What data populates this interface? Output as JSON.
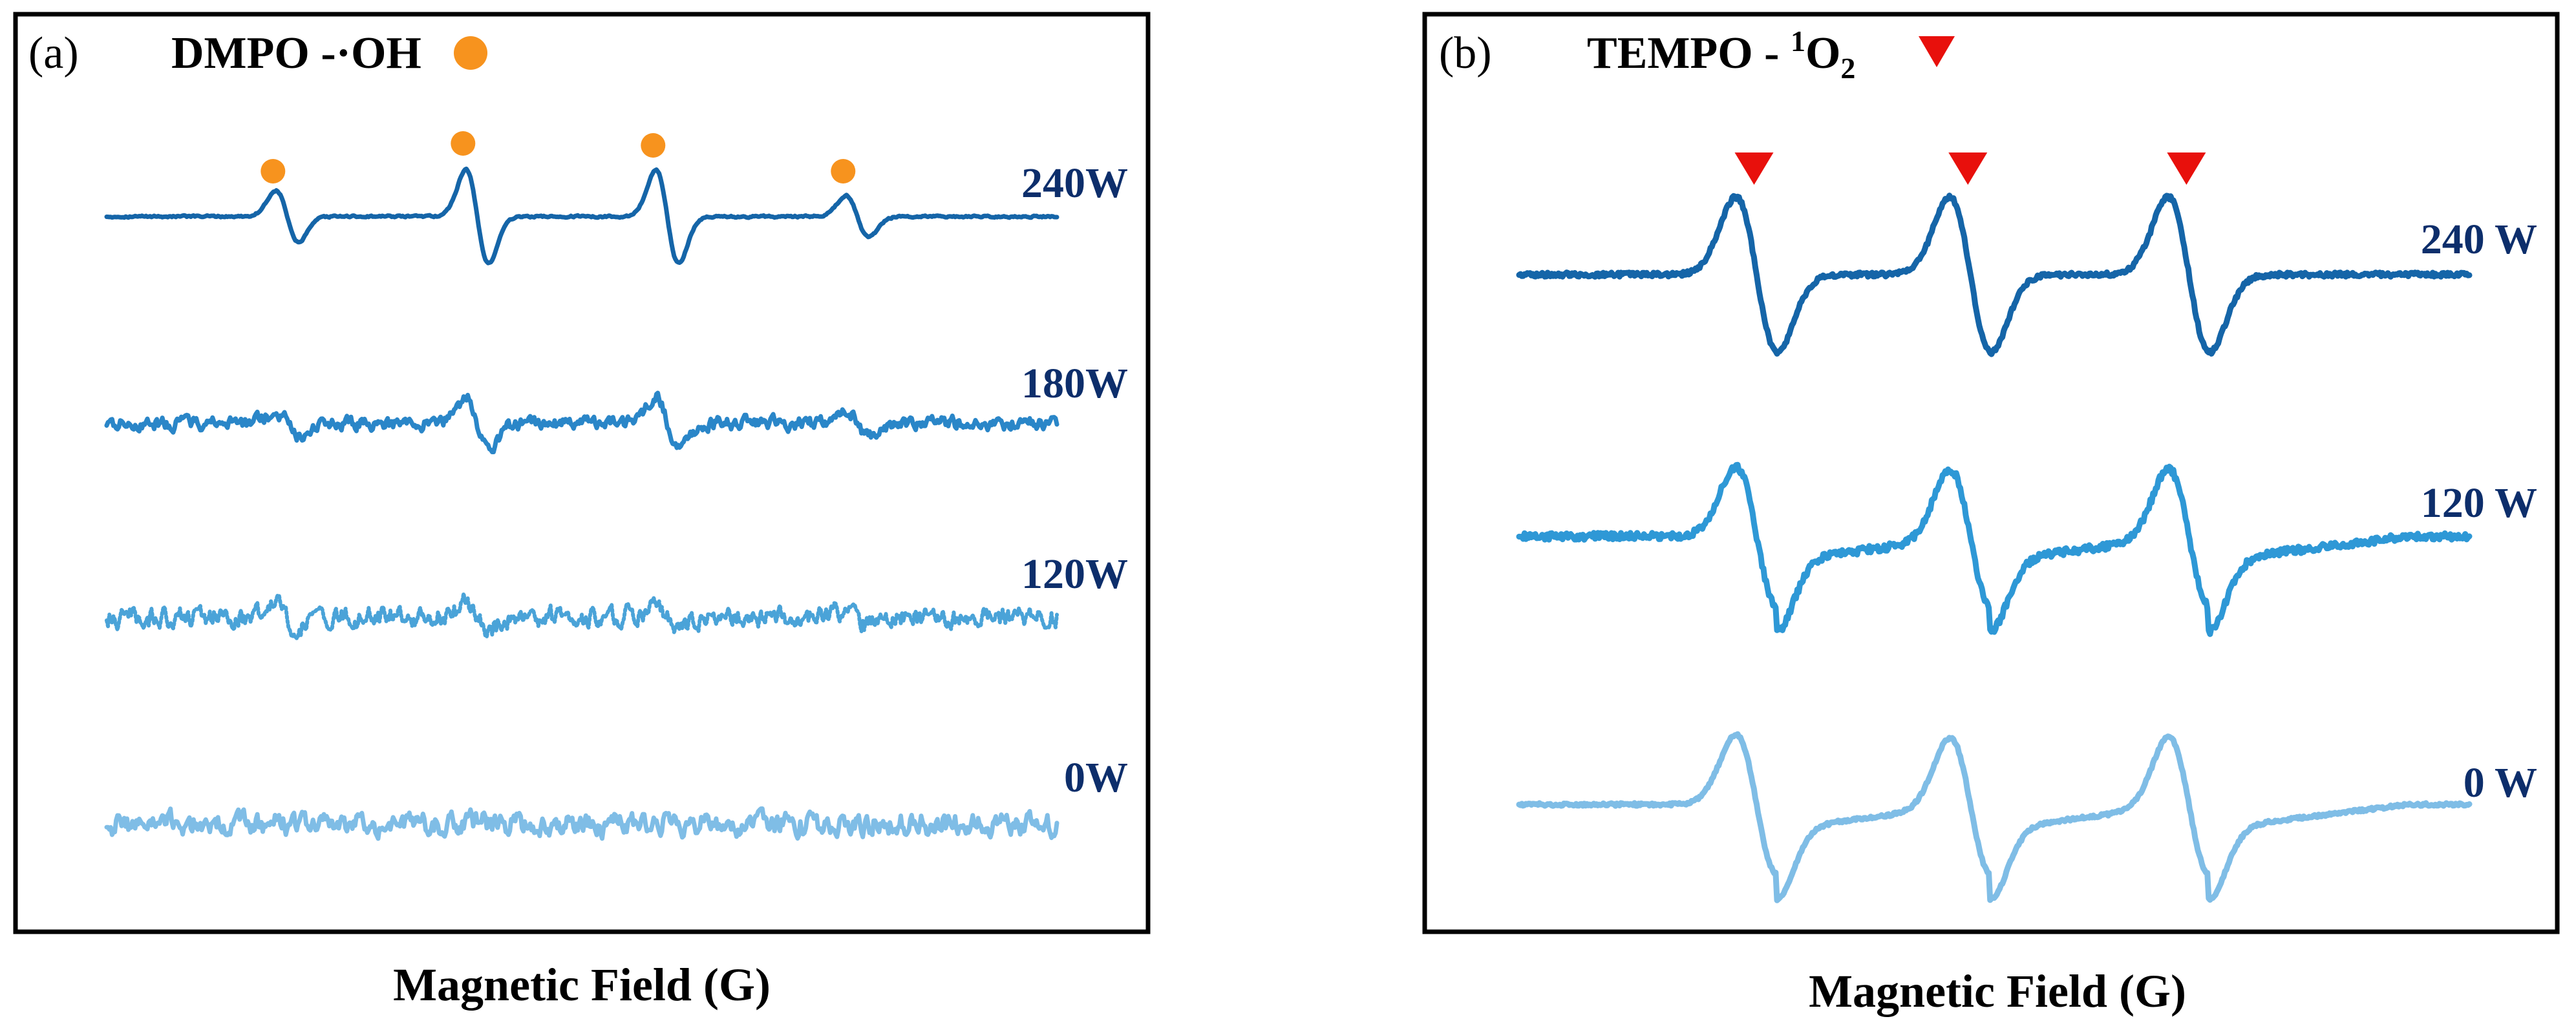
{
  "chart_data": [
    {
      "type": "line",
      "panel_label": "(a)",
      "title_prefix": "DMPO -",
      "title_species": "·OH",
      "marker": "orange-circle",
      "marker_color": "#f7931e",
      "xlabel": "Magnetic Field (G)",
      "ylabel": "",
      "grid": false,
      "axes_ticks": false,
      "peak_positions_fraction": [
        0.19,
        0.39,
        0.59,
        0.79
      ],
      "series": [
        {
          "name": "240W",
          "color": "#1565a8",
          "noise": 0.05,
          "signal": 1.0,
          "peak_weights": [
            0.55,
            1.0,
            1.0,
            0.45
          ],
          "markers": true
        },
        {
          "name": "180W",
          "color": "#2a86c8",
          "noise": 0.35,
          "signal": 0.55,
          "peak_weights": [
            0.45,
            1.0,
            1.0,
            0.55
          ],
          "markers": false
        },
        {
          "name": "120W",
          "color": "#4aa3d8",
          "noise": 0.55,
          "signal": 0.3,
          "peak_weights": [
            0.6,
            1.0,
            1.0,
            0.6
          ],
          "markers": false,
          "style": "dashed"
        },
        {
          "name": "0W",
          "color": "#7fbde6",
          "noise": 0.6,
          "signal": 0.0,
          "peak_weights": [
            0,
            0,
            0,
            0
          ],
          "markers": false
        }
      ]
    },
    {
      "type": "line",
      "panel_label": "(b)",
      "title_prefix": "TEMPO - ",
      "title_sup": "1",
      "title_species": "O",
      "title_sub": "2",
      "marker": "red-down-triangle",
      "marker_color": "#e8100c",
      "xlabel": "Magnetic Field (G)",
      "ylabel": "",
      "grid": false,
      "axes_ticks": false,
      "peak_positions_fraction": [
        0.25,
        0.475,
        0.705
      ],
      "series": [
        {
          "name": "240 W",
          "color": "#1565a8",
          "noise": 0.03,
          "signal": 1.0,
          "baseline_slope": 0.0,
          "markers": true
        },
        {
          "name": "120 W",
          "color": "#2e98d6",
          "noise": 0.05,
          "signal": 0.9,
          "baseline_slope": 0.35,
          "markers": false
        },
        {
          "name": "0 W",
          "color": "#7fbde6",
          "noise": 0.02,
          "signal": 0.9,
          "baseline_slope": 0.35,
          "markers": false
        }
      ]
    }
  ]
}
